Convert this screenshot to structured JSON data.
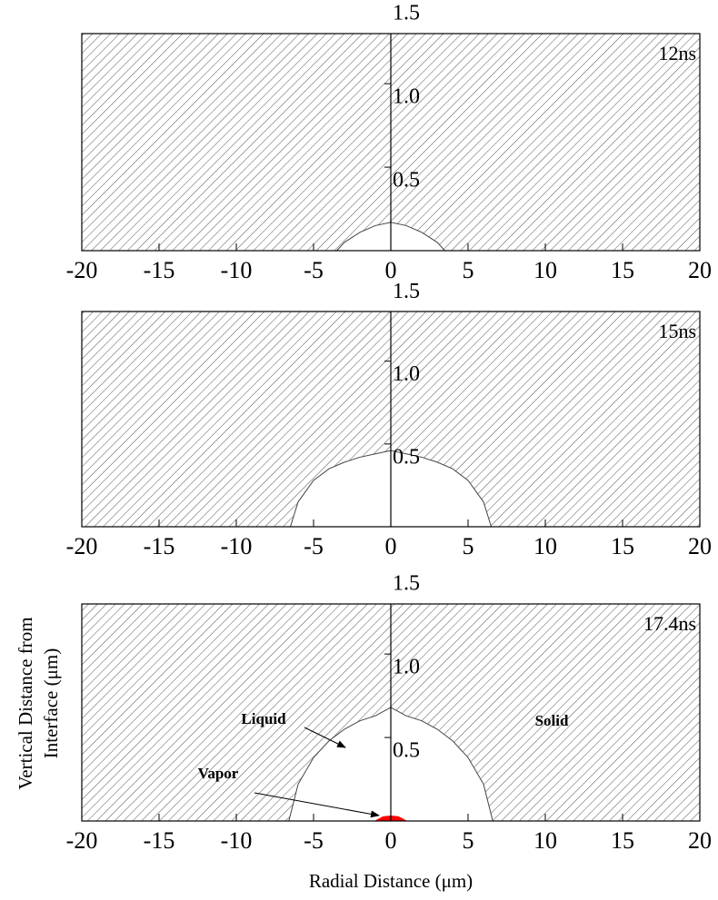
{
  "chart_data": [
    {
      "type": "area",
      "label": "12ns",
      "x": [
        -3.5,
        -3,
        -2,
        -1,
        0,
        1,
        2,
        3,
        3.5
      ],
      "values": [
        0,
        0.05,
        0.11,
        0.15,
        0.17,
        0.15,
        0.11,
        0.05,
        0
      ],
      "xlim": [
        -20,
        20
      ],
      "xticks": [
        -20,
        -15,
        -10,
        -5,
        0,
        5,
        10,
        15,
        20
      ],
      "ylim": [
        0,
        1.3
      ],
      "yticks": [
        0.5,
        {
          "value": 1.0,
          "label": "1.0"
        },
        1.5
      ]
    },
    {
      "type": "area",
      "label": "15ns",
      "x": [
        -6.5,
        -6,
        -5,
        -4,
        -3,
        -2,
        -1,
        0,
        1,
        2,
        3,
        4,
        5,
        6,
        6.5
      ],
      "values": [
        0,
        0.15,
        0.28,
        0.35,
        0.39,
        0.42,
        0.44,
        0.46,
        0.44,
        0.42,
        0.39,
        0.35,
        0.28,
        0.15,
        0
      ],
      "xlim": [
        -20,
        20
      ],
      "xticks": [
        -20,
        -15,
        -10,
        -5,
        0,
        5,
        10,
        15,
        20
      ],
      "ylim": [
        0,
        1.3
      ],
      "yticks": [
        0.5,
        {
          "value": 1.0,
          "label": "1.0"
        },
        1.5
      ]
    },
    {
      "type": "area",
      "label": "17.4ns",
      "x": [
        -6.6,
        -6,
        -5,
        -4,
        -3,
        -2,
        -1,
        0,
        1,
        2,
        3,
        4,
        5,
        6,
        6.6
      ],
      "values": [
        0,
        0.22,
        0.38,
        0.48,
        0.55,
        0.6,
        0.63,
        0.68,
        0.63,
        0.6,
        0.55,
        0.48,
        0.38,
        0.22,
        0
      ],
      "vapor": {
        "x": [
          -1,
          -0.5,
          0,
          0.5,
          1
        ],
        "values": [
          0,
          0.025,
          0.03,
          0.025,
          0
        ],
        "color": "#ff0000"
      },
      "annotations": [
        "Liquid",
        "Solid",
        "Vapor"
      ],
      "xlabel": "Radial Distance (μm)",
      "ylabel": [
        "Vertical Distance from",
        "Interface (μm)"
      ],
      "xlim": [
        -20,
        20
      ],
      "xticks": [
        -20,
        -15,
        -10,
        -5,
        0,
        5,
        10,
        15,
        20
      ],
      "ylim": [
        0,
        1.3
      ],
      "yticks": [
        0.5,
        {
          "value": 1.0,
          "label": "1.0"
        },
        1.5
      ]
    }
  ]
}
